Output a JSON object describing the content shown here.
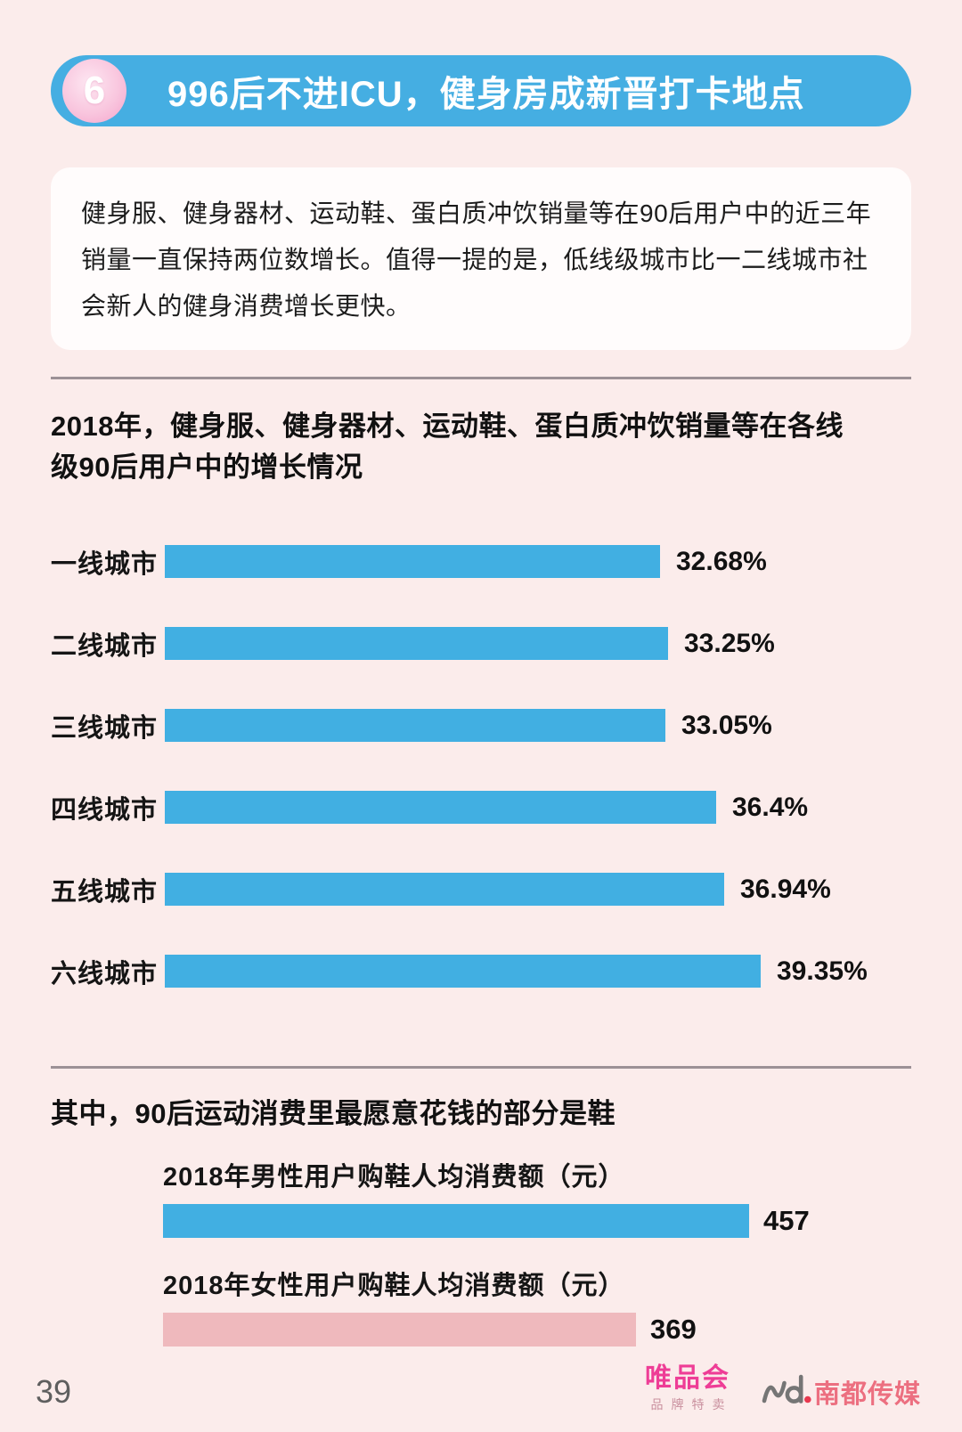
{
  "header": {
    "badge_number": "6",
    "title": "996后不进ICU，健身房成新晋打卡地点",
    "banner_color": "#45AEE2",
    "badge_color": "#F3A2CB"
  },
  "intro": {
    "text": "健身服、健身器材、运动鞋、蛋白质冲饮销量等在90后用户中的近三年销量一直保持两位数增长。值得一提的是，低线级城市比一二线城市社会新人的健身消费增长更快。"
  },
  "chart_data": [
    {
      "type": "bar",
      "orientation": "horizontal",
      "title": "2018年，健身服、健身器材、运动鞋、蛋白质冲饮销量等在各线级90后用户中的增长情况",
      "categories": [
        "一线城市",
        "二线城市",
        "三线城市",
        "四线城市",
        "五线城市",
        "六线城市"
      ],
      "values": [
        32.68,
        33.25,
        33.05,
        36.4,
        36.94,
        39.35
      ],
      "value_labels": [
        "32.68%",
        "33.25%",
        "33.05%",
        "36.4%",
        "36.94%",
        "39.35%"
      ],
      "bar_color": "#41AFE2",
      "xlim": [
        0,
        40
      ],
      "grid": false,
      "legend": false
    },
    {
      "type": "bar",
      "orientation": "horizontal",
      "title": "其中，90后运动消费里最愿意花钱的部分是鞋",
      "categories": [
        "2018年男性用户购鞋人均消费额（元）",
        "2018年女性用户购鞋人均消费额（元）"
      ],
      "values": [
        457,
        369
      ],
      "value_labels": [
        "457",
        "369"
      ],
      "bar_colors": [
        "#41AFE2",
        "#EFB9BD"
      ],
      "xlim": [
        0,
        500
      ],
      "grid": false,
      "legend": false
    }
  ],
  "footer": {
    "page_number": "39",
    "logos": {
      "vip": {
        "name": "唯品会",
        "tagline": "品牌特卖",
        "color": "#EE3D96"
      },
      "nd": {
        "name": "南都传媒",
        "color": "#EC6F80"
      }
    }
  },
  "colors": {
    "page_background": "#FBECEB",
    "intro_box_background": "#FFFCFC",
    "divider": "#9C9196",
    "blue_bar": "#41AFE2",
    "pink_bar": "#EFB9BD"
  }
}
